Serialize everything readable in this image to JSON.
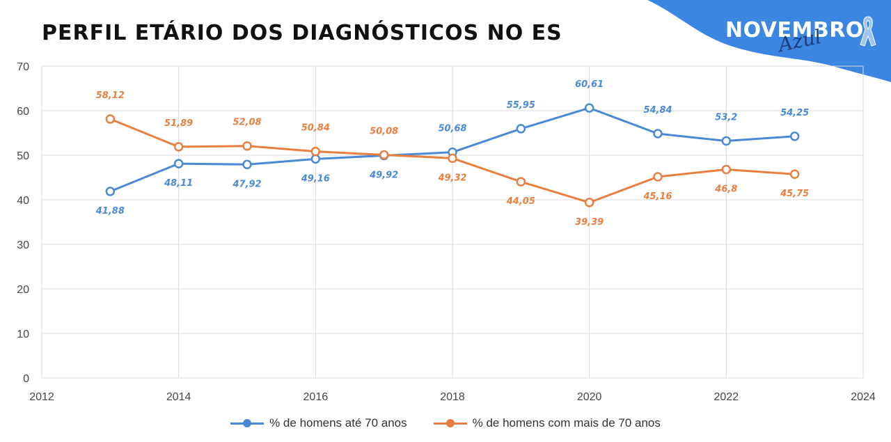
{
  "brand": {
    "main_text": "NOVEMBRO",
    "script_text": "Azul",
    "wave_color": "#3b86e0",
    "ribbon_icon": "awareness-ribbon-icon"
  },
  "chart_data": {
    "type": "line",
    "title": "PERFIL ETÁRIO DOS DIAGNÓSTICOS NO ES",
    "xlabel": "",
    "ylabel": "",
    "xlim": [
      2012,
      2024
    ],
    "ylim": [
      0,
      70
    ],
    "x_ticks": [
      "2012",
      "2014",
      "2016",
      "2018",
      "2020",
      "2022",
      "2024"
    ],
    "y_ticks": [
      "0",
      "10",
      "20",
      "30",
      "40",
      "50",
      "60",
      "70"
    ],
    "grid": true,
    "legend_position": "bottom",
    "x": [
      2013,
      2014,
      2015,
      2016,
      2017,
      2018,
      2019,
      2020,
      2021,
      2022,
      2023
    ],
    "series": [
      {
        "name": "% de homens até 70 anos",
        "color": "#4a89d6",
        "values": [
          41.88,
          48.11,
          47.92,
          49.16,
          49.92,
          50.68,
          55.95,
          60.61,
          54.84,
          53.2,
          54.25
        ],
        "labels": [
          "41,88",
          "48,11",
          "47,92",
          "49,16",
          "49,92",
          "50,68",
          "55,95",
          "60,61",
          "54,84",
          "53,2",
          "54,25"
        ],
        "label_positions": [
          "below",
          "below",
          "below",
          "below",
          "below",
          "above",
          "above",
          "above",
          "above",
          "above",
          "above"
        ]
      },
      {
        "name": "% de homens com mais de 70 anos",
        "color": "#e87f3f",
        "values": [
          58.12,
          51.89,
          52.08,
          50.84,
          50.08,
          49.32,
          44.05,
          39.39,
          45.16,
          46.8,
          45.75
        ],
        "labels": [
          "58,12",
          "51,89",
          "52,08",
          "50,84",
          "50,08",
          "49,32",
          "44,05",
          "39,39",
          "45,16",
          "46,8",
          "45,75"
        ],
        "label_positions": [
          "above",
          "above",
          "above",
          "above",
          "above",
          "below",
          "below",
          "below",
          "below",
          "below",
          "below"
        ]
      }
    ]
  }
}
